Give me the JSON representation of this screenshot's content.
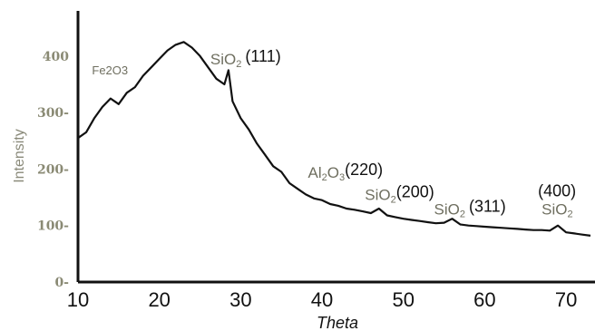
{
  "chart_data": {
    "type": "line",
    "xlabel": "Theta",
    "ylabel": "Intensity",
    "xlim": [
      10,
      73
    ],
    "ylim": [
      0,
      480
    ],
    "x_ticks": [
      "10",
      "20",
      "30",
      "40",
      "50",
      "60",
      "70"
    ],
    "y_ticks": [
      "0-",
      "100-",
      "200-",
      "300-",
      "400"
    ],
    "grid": false,
    "series": [
      {
        "x": [
          10,
          11,
          12,
          13,
          14,
          15,
          16,
          17,
          18,
          19,
          20,
          21,
          22,
          23,
          24,
          25,
          26,
          27,
          28,
          28.5,
          29,
          30,
          31,
          32,
          33,
          34,
          35,
          36,
          37,
          38,
          39,
          40,
          41,
          42,
          43,
          44,
          45,
          46,
          47,
          48,
          49,
          50,
          51,
          52,
          53,
          54,
          55,
          56,
          57,
          58,
          59,
          60,
          61,
          62,
          63,
          64,
          65,
          66,
          67,
          68,
          69,
          70,
          71,
          72,
          73
        ],
        "y": [
          255,
          265,
          290,
          310,
          325,
          315,
          335,
          345,
          365,
          380,
          395,
          410,
          420,
          425,
          415,
          400,
          380,
          360,
          350,
          375,
          320,
          290,
          270,
          245,
          225,
          205,
          195,
          175,
          165,
          155,
          148,
          145,
          138,
          135,
          130,
          128,
          125,
          122,
          130,
          118,
          115,
          112,
          110,
          108,
          106,
          104,
          105,
          112,
          102,
          100,
          99,
          98,
          97,
          96,
          95,
          94,
          93,
          92,
          92,
          91,
          100,
          88,
          86,
          84,
          82
        ]
      }
    ],
    "annotations": [
      {
        "id": "fe2o3",
        "base": "Fe2O3",
        "x": 13.5,
        "y": 355
      },
      {
        "id": "sio2_111",
        "base": "SiO",
        "sub": "2",
        "hkl": "(111)",
        "x": 28.5,
        "y": 385
      },
      {
        "id": "al2o3_220",
        "base": "Al",
        "sub": "2",
        "base2": "O",
        "sub2": "3",
        "hkl": "(220)",
        "x": 40.5,
        "y": 185
      },
      {
        "id": "sio2_200",
        "base": "SiO",
        "sub": "2",
        "hkl": "(200)",
        "x": 47.5,
        "y": 145
      },
      {
        "id": "sio2_311",
        "base": "SiO",
        "sub": "2",
        "hkl": "(311)",
        "x": 56,
        "y": 120
      },
      {
        "id": "sio2_400",
        "base": "SiO",
        "sub": "2",
        "hkl": "(400)",
        "x": 69,
        "y": 120
      }
    ]
  }
}
